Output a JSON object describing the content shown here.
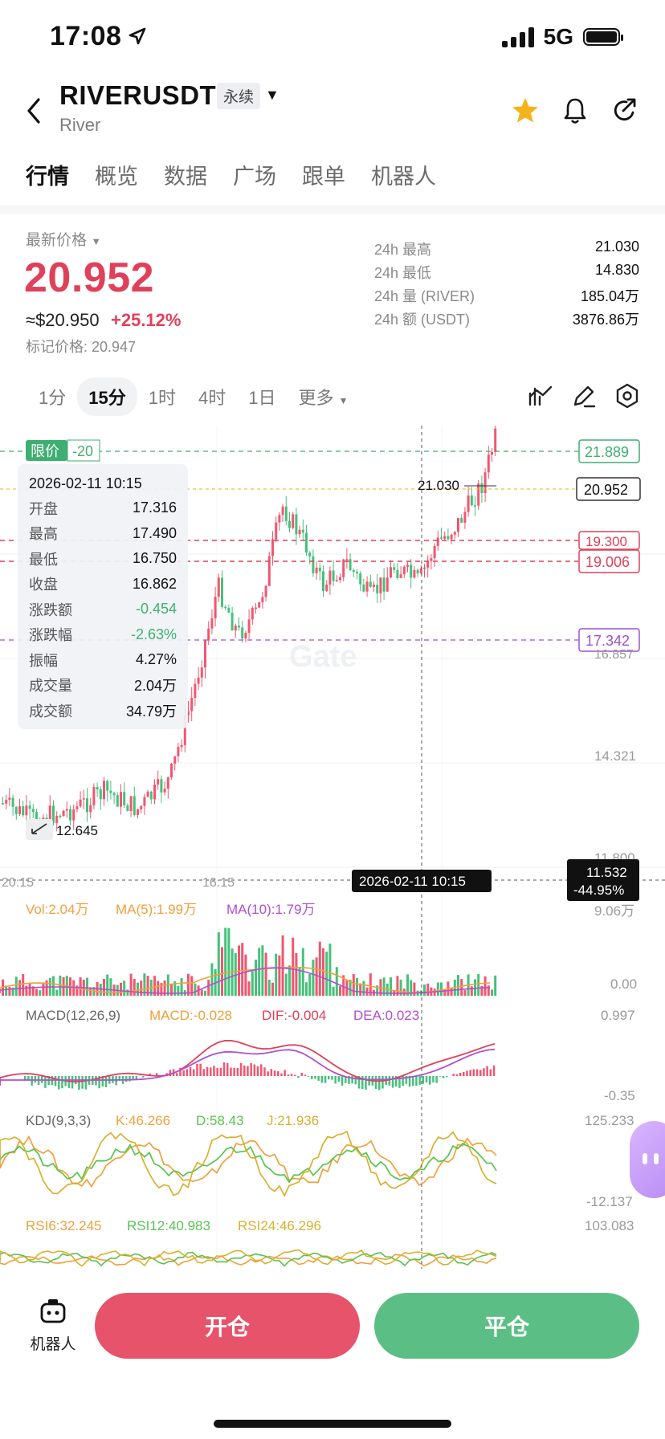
{
  "status_bar": {
    "time": "17:08",
    "network": "5G"
  },
  "header": {
    "symbol": "RIVERUSDT",
    "badge": "永续",
    "subtitle": "River"
  },
  "tabs": [
    "行情",
    "概览",
    "数据",
    "广场",
    "跟单",
    "机器人"
  ],
  "price": {
    "label": "最新价格",
    "last": "20.952",
    "usd": "≈$20.950",
    "change_pct": "+25.12%",
    "mark": "标记价格: 20.947"
  },
  "stats": [
    {
      "key": "24h  最高",
      "value": "21.030"
    },
    {
      "key": "24h  最低",
      "value": "14.830"
    },
    {
      "key": "24h  量 (RIVER)",
      "value": "185.04万"
    },
    {
      "key": "24h  额 (USDT)",
      "value": "3876.86万"
    }
  ],
  "timeframes": [
    "1分",
    "15分",
    "1时",
    "4时",
    "1日",
    "更多"
  ],
  "tooltip": {
    "date": "2026-02-11 10:15",
    "rows": [
      {
        "k": "开盘",
        "v": "17.316",
        "color": "#111111"
      },
      {
        "k": "最高",
        "v": "17.490",
        "color": "#111111"
      },
      {
        "k": "最低",
        "v": "16.750",
        "color": "#111111"
      },
      {
        "k": "收盘",
        "v": "16.862",
        "color": "#111111"
      },
      {
        "k": "涨跌额",
        "v": "-0.454",
        "color": "#3cb371"
      },
      {
        "k": "涨跌幅",
        "v": "-2.63%",
        "color": "#3cb371"
      },
      {
        "k": "振幅",
        "v": "4.27%",
        "color": "#111111"
      },
      {
        "k": "成交量",
        "v": "2.04万",
        "color": "#111111"
      },
      {
        "k": "成交额",
        "v": "34.79万",
        "color": "#111111"
      }
    ]
  },
  "chart_labels": {
    "limit_label": "限价",
    "limit_qty": "-20",
    "level_21889": "21.889",
    "level_last": "20.952",
    "level_19300": "19.300",
    "level_19006": "19.006",
    "level_17342": "17.342",
    "axis_16857": "16.857",
    "axis_14321": "14.321",
    "axis_11800": "11.800",
    "high_marker": "21.030",
    "low_marker": "12.645",
    "crosshair_price": "11.532",
    "crosshair_pct": "-44.95%",
    "crosshair_date": "2026-02-11 10:15",
    "time_1": "20:15",
    "time_2": "16:15",
    "watermark": "Gate"
  },
  "indicators": {
    "vol": {
      "vol": "Vol:2.04万",
      "ma5": "MA(5):1.99万",
      "ma10": "MA(10):1.79万",
      "axis_top": "9.06万",
      "axis_bottom": "0.00"
    },
    "macd": {
      "name": "MACD(12,26,9)",
      "macd": "MACD:-0.028",
      "dif": "DIF:-0.004",
      "dea": "DEA:0.023",
      "axis_top": "0.997",
      "axis_bottom": "-0.35"
    },
    "kdj": {
      "name": "KDJ(9,3,3)",
      "k": "K:46.266",
      "d": "D:58.43",
      "j": "J:21.936",
      "axis_top": "125.233",
      "axis_bottom": "-12.137"
    },
    "rsi": {
      "rsi6": "RSI6:32.245",
      "rsi12": "RSI12:40.983",
      "rsi24": "RSI24:46.296",
      "axis_top": "103.083"
    }
  },
  "colors": {
    "up": "#f25670",
    "down": "#45c17a",
    "accent_red": "#e0405a",
    "ma5": "#f0a03c",
    "ma10": "#b14fd2",
    "limit_green": "#3fae72"
  },
  "icons": [
    "back-icon",
    "star-icon",
    "bell-icon",
    "share-icon",
    "indicator-icon",
    "draw-icon",
    "settings-icon",
    "robot-icon"
  ],
  "bottom": {
    "robot_label": "机器人",
    "open": "开仓",
    "close": "平仓"
  }
}
